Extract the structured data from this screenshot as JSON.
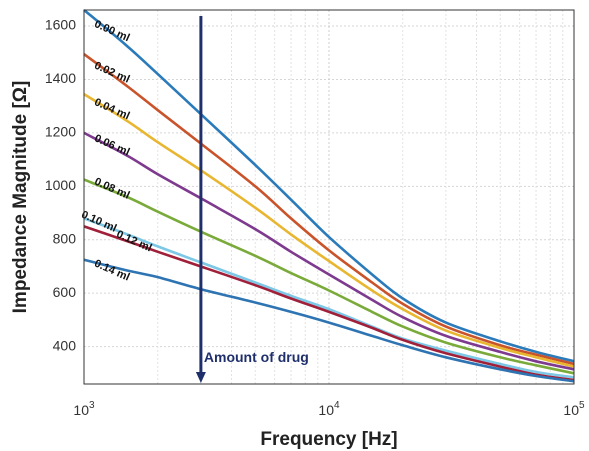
{
  "chart_data": {
    "type": "line",
    "title": "",
    "xlabel": "Frequency [Hz]",
    "ylabel": "Impedance Magnitude [Ω]",
    "x_scale": "log",
    "xlim": [
      1000,
      100000
    ],
    "ylim": [
      260,
      1660
    ],
    "x_ticks": [
      {
        "value": 1000,
        "base": "10",
        "exp": "3"
      },
      {
        "value": 10000,
        "base": "10",
        "exp": "4"
      },
      {
        "value": 100000,
        "base": "10",
        "exp": "5"
      }
    ],
    "y_ticks": [
      400,
      600,
      800,
      1000,
      1200,
      1400,
      1600
    ],
    "grid": true,
    "x": [
      1000,
      1500,
      2000,
      3000,
      5000,
      7000,
      10000,
      15000,
      20000,
      30000,
      50000,
      70000,
      100000
    ],
    "series": [
      {
        "name": "0.00 ml",
        "color": "#2b7bba",
        "values": [
          1660,
          1525,
          1420,
          1270,
          1080,
          950,
          810,
          670,
          580,
          490,
          420,
          380,
          345
        ]
      },
      {
        "name": "0.02 ml",
        "color": "#c9532a",
        "values": [
          1495,
          1375,
          1285,
          1160,
          1000,
          880,
          760,
          640,
          560,
          475,
          405,
          370,
          335
        ]
      },
      {
        "name": "0.04 ml",
        "color": "#e8b630",
        "values": [
          1345,
          1245,
          1165,
          1060,
          920,
          820,
          720,
          610,
          540,
          460,
          395,
          360,
          325
        ]
      },
      {
        "name": "0.06 ml",
        "color": "#7e3a8e",
        "values": [
          1200,
          1115,
          1045,
          955,
          840,
          755,
          670,
          575,
          510,
          440,
          380,
          345,
          315
        ]
      },
      {
        "name": "0.08 ml",
        "color": "#7aab3a",
        "values": [
          1025,
          960,
          905,
          830,
          740,
          675,
          610,
          530,
          475,
          415,
          360,
          330,
          300
        ]
      },
      {
        "name": "0.10 ml",
        "color": "#7dc8e6",
        "values": [
          880,
          820,
          775,
          715,
          640,
          590,
          540,
          475,
          430,
          385,
          335,
          305,
          285
        ]
      },
      {
        "name": "0.12 ml",
        "color": "#a0203a",
        "values": [
          850,
          795,
          755,
          700,
          630,
          580,
          530,
          470,
          425,
          375,
          325,
          295,
          275
        ]
      },
      {
        "name": "0.14 ml",
        "color": "#2e74b2",
        "values": [
          725,
          685,
          660,
          615,
          565,
          530,
          490,
          440,
          405,
          360,
          315,
          290,
          270
        ]
      }
    ],
    "annotation": {
      "text": "Amount of drug",
      "arrow_x": 3000,
      "color": "#1f2f6b"
    }
  }
}
